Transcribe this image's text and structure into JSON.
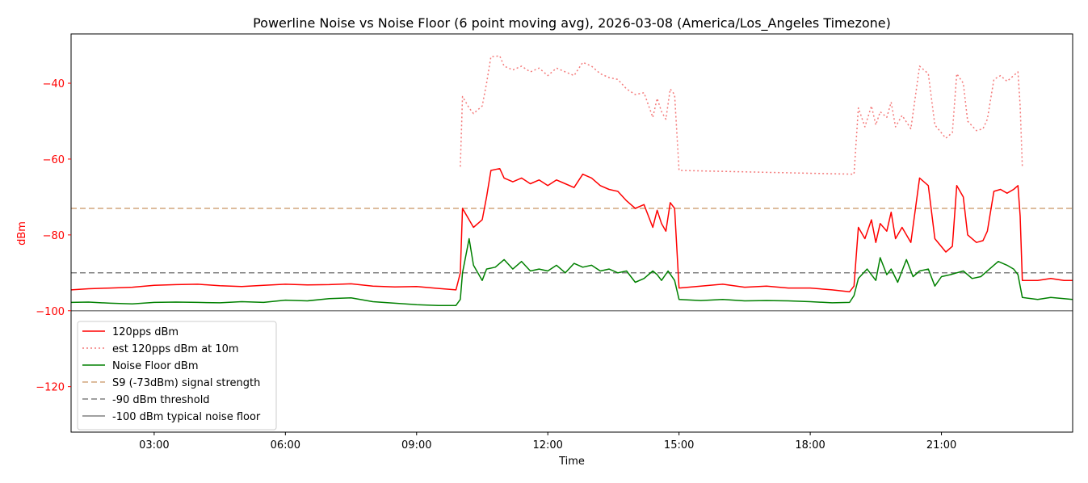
{
  "chart_data": {
    "type": "line",
    "title": "Powerline Noise vs Noise Floor (6 point moving avg), 2026-03-08 (America/Los_Angeles Timezone)",
    "xlabel": "Time",
    "ylabel": "dBm",
    "xlim": [
      1.1,
      24.0
    ],
    "ylim": [
      -132,
      -27
    ],
    "x_ticks": [
      {
        "value": 3,
        "label": "03:00"
      },
      {
        "value": 6,
        "label": "06:00"
      },
      {
        "value": 9,
        "label": "09:00"
      },
      {
        "value": 12,
        "label": "12:00"
      },
      {
        "value": 15,
        "label": "15:00"
      },
      {
        "value": 18,
        "label": "18:00"
      },
      {
        "value": 21,
        "label": "21:00"
      }
    ],
    "y_ticks": [
      {
        "value": -40,
        "label": "−40"
      },
      {
        "value": -60,
        "label": "−60"
      },
      {
        "value": -80,
        "label": "−80"
      },
      {
        "value": -100,
        "label": "−100"
      },
      {
        "value": -120,
        "label": "−120"
      }
    ],
    "grid": false,
    "legend_position": "lower-left",
    "series": [
      {
        "name": "120pps dBm",
        "color": "#ff0000",
        "style": "solid",
        "points": [
          [
            1.1,
            -94.5
          ],
          [
            1.5,
            -94.2
          ],
          [
            2.0,
            -94.0
          ],
          [
            2.5,
            -93.8
          ],
          [
            3.0,
            -93.3
          ],
          [
            3.5,
            -93.1
          ],
          [
            4.0,
            -93.0
          ],
          [
            4.5,
            -93.4
          ],
          [
            5.0,
            -93.6
          ],
          [
            5.5,
            -93.3
          ],
          [
            6.0,
            -93.0
          ],
          [
            6.5,
            -93.2
          ],
          [
            7.0,
            -93.1
          ],
          [
            7.5,
            -92.9
          ],
          [
            8.0,
            -93.5
          ],
          [
            8.5,
            -93.7
          ],
          [
            9.0,
            -93.6
          ],
          [
            9.5,
            -94.1
          ],
          [
            9.9,
            -94.5
          ],
          [
            10.0,
            -90.0
          ],
          [
            10.05,
            -73.0
          ],
          [
            10.2,
            -76.0
          ],
          [
            10.3,
            -78.0
          ],
          [
            10.5,
            -76.0
          ],
          [
            10.6,
            -70.0
          ],
          [
            10.7,
            -63.0
          ],
          [
            10.9,
            -62.5
          ],
          [
            11.0,
            -65.0
          ],
          [
            11.2,
            -66.0
          ],
          [
            11.4,
            -65.0
          ],
          [
            11.6,
            -66.5
          ],
          [
            11.8,
            -65.5
          ],
          [
            12.0,
            -67.0
          ],
          [
            12.2,
            -65.5
          ],
          [
            12.4,
            -66.5
          ],
          [
            12.6,
            -67.5
          ],
          [
            12.8,
            -64.0
          ],
          [
            13.0,
            -65.0
          ],
          [
            13.2,
            -67.0
          ],
          [
            13.4,
            -68.0
          ],
          [
            13.6,
            -68.5
          ],
          [
            13.8,
            -71.0
          ],
          [
            14.0,
            -73.0
          ],
          [
            14.2,
            -72.0
          ],
          [
            14.4,
            -78.0
          ],
          [
            14.5,
            -73.5
          ],
          [
            14.6,
            -77.0
          ],
          [
            14.7,
            -79.0
          ],
          [
            14.8,
            -71.5
          ],
          [
            14.9,
            -73.0
          ],
          [
            15.0,
            -94.0
          ],
          [
            15.5,
            -93.5
          ],
          [
            16.0,
            -93.0
          ],
          [
            16.5,
            -93.8
          ],
          [
            17.0,
            -93.5
          ],
          [
            17.5,
            -94.0
          ],
          [
            18.0,
            -94.0
          ],
          [
            18.5,
            -94.5
          ],
          [
            18.9,
            -95.0
          ],
          [
            19.0,
            -93.5
          ],
          [
            19.1,
            -78.0
          ],
          [
            19.25,
            -81.0
          ],
          [
            19.4,
            -76.0
          ],
          [
            19.5,
            -82.0
          ],
          [
            19.6,
            -77.0
          ],
          [
            19.75,
            -79.0
          ],
          [
            19.85,
            -74.0
          ],
          [
            19.95,
            -81.0
          ],
          [
            20.1,
            -78.0
          ],
          [
            20.3,
            -82.0
          ],
          [
            20.5,
            -65.0
          ],
          [
            20.7,
            -67.0
          ],
          [
            20.85,
            -81.0
          ],
          [
            21.1,
            -84.5
          ],
          [
            21.25,
            -83.0
          ],
          [
            21.35,
            -67.0
          ],
          [
            21.5,
            -70.0
          ],
          [
            21.6,
            -80.0
          ],
          [
            21.8,
            -82.0
          ],
          [
            21.95,
            -81.5
          ],
          [
            22.05,
            -79.0
          ],
          [
            22.2,
            -68.5
          ],
          [
            22.35,
            -68.0
          ],
          [
            22.5,
            -69.0
          ],
          [
            22.65,
            -68.0
          ],
          [
            22.75,
            -67.0
          ],
          [
            22.8,
            -75.0
          ],
          [
            22.85,
            -92.0
          ],
          [
            23.2,
            -92.0
          ],
          [
            23.5,
            -91.5
          ],
          [
            23.8,
            -92.0
          ],
          [
            24.0,
            -92.0
          ]
        ]
      },
      {
        "name": "est 120pps dBm at 10m",
        "color": "#f47a7a",
        "style": "dotted",
        "points": [
          [
            10.0,
            -62.0
          ],
          [
            10.05,
            -43.5
          ],
          [
            10.2,
            -46.5
          ],
          [
            10.3,
            -48.0
          ],
          [
            10.5,
            -46.0
          ],
          [
            10.6,
            -40.0
          ],
          [
            10.7,
            -33.0
          ],
          [
            10.9,
            -32.8
          ],
          [
            11.0,
            -35.5
          ],
          [
            11.2,
            -36.5
          ],
          [
            11.4,
            -35.5
          ],
          [
            11.6,
            -37.0
          ],
          [
            11.8,
            -36.0
          ],
          [
            12.0,
            -38.0
          ],
          [
            12.2,
            -36.0
          ],
          [
            12.4,
            -37.0
          ],
          [
            12.6,
            -38.0
          ],
          [
            12.8,
            -34.5
          ],
          [
            13.0,
            -35.5
          ],
          [
            13.2,
            -37.5
          ],
          [
            13.4,
            -38.5
          ],
          [
            13.6,
            -39.0
          ],
          [
            13.8,
            -41.5
          ],
          [
            14.0,
            -43.0
          ],
          [
            14.2,
            -42.5
          ],
          [
            14.4,
            -49.0
          ],
          [
            14.5,
            -44.0
          ],
          [
            14.6,
            -47.5
          ],
          [
            14.7,
            -49.5
          ],
          [
            14.8,
            -41.5
          ],
          [
            14.9,
            -43.0
          ],
          [
            15.0,
            -63.0
          ],
          [
            19.0,
            -64.0
          ],
          [
            19.1,
            -46.5
          ],
          [
            19.25,
            -51.5
          ],
          [
            19.4,
            -46.0
          ],
          [
            19.5,
            -51.0
          ],
          [
            19.6,
            -47.5
          ],
          [
            19.75,
            -49.0
          ],
          [
            19.85,
            -45.0
          ],
          [
            19.95,
            -51.5
          ],
          [
            20.1,
            -48.5
          ],
          [
            20.3,
            -52.0
          ],
          [
            20.5,
            -35.5
          ],
          [
            20.7,
            -37.5
          ],
          [
            20.85,
            -51.0
          ],
          [
            21.1,
            -54.5
          ],
          [
            21.25,
            -53.0
          ],
          [
            21.35,
            -37.5
          ],
          [
            21.5,
            -40.0
          ],
          [
            21.6,
            -50.0
          ],
          [
            21.8,
            -52.5
          ],
          [
            21.95,
            -52.0
          ],
          [
            22.05,
            -49.5
          ],
          [
            22.2,
            -39.0
          ],
          [
            22.35,
            -38.0
          ],
          [
            22.5,
            -39.5
          ],
          [
            22.65,
            -38.0
          ],
          [
            22.75,
            -37.0
          ],
          [
            22.8,
            -46.0
          ],
          [
            22.85,
            -62.0
          ]
        ]
      },
      {
        "name": "Noise Floor dBm",
        "color": "#008000",
        "style": "solid",
        "points": [
          [
            1.1,
            -97.8
          ],
          [
            1.5,
            -97.7
          ],
          [
            2.0,
            -98.0
          ],
          [
            2.5,
            -98.2
          ],
          [
            3.0,
            -97.8
          ],
          [
            3.5,
            -97.7
          ],
          [
            4.0,
            -97.8
          ],
          [
            4.5,
            -97.9
          ],
          [
            5.0,
            -97.6
          ],
          [
            5.5,
            -97.8
          ],
          [
            6.0,
            -97.2
          ],
          [
            6.5,
            -97.4
          ],
          [
            7.0,
            -96.8
          ],
          [
            7.5,
            -96.6
          ],
          [
            8.0,
            -97.6
          ],
          [
            8.5,
            -98.0
          ],
          [
            9.0,
            -98.4
          ],
          [
            9.5,
            -98.6
          ],
          [
            9.9,
            -98.6
          ],
          [
            10.0,
            -97.0
          ],
          [
            10.05,
            -90.0
          ],
          [
            10.2,
            -81.0
          ],
          [
            10.3,
            -88.0
          ],
          [
            10.5,
            -92.0
          ],
          [
            10.6,
            -89.0
          ],
          [
            10.8,
            -88.5
          ],
          [
            11.0,
            -86.5
          ],
          [
            11.2,
            -89.0
          ],
          [
            11.4,
            -87.0
          ],
          [
            11.6,
            -89.5
          ],
          [
            11.8,
            -89.0
          ],
          [
            12.0,
            -89.5
          ],
          [
            12.2,
            -88.0
          ],
          [
            12.4,
            -90.0
          ],
          [
            12.6,
            -87.5
          ],
          [
            12.8,
            -88.5
          ],
          [
            13.0,
            -88.0
          ],
          [
            13.2,
            -89.5
          ],
          [
            13.4,
            -89.0
          ],
          [
            13.6,
            -90.0
          ],
          [
            13.8,
            -89.5
          ],
          [
            14.0,
            -92.5
          ],
          [
            14.2,
            -91.5
          ],
          [
            14.4,
            -89.5
          ],
          [
            14.5,
            -90.5
          ],
          [
            14.6,
            -92.0
          ],
          [
            14.75,
            -89.5
          ],
          [
            14.9,
            -92.0
          ],
          [
            15.0,
            -97.0
          ],
          [
            15.5,
            -97.3
          ],
          [
            16.0,
            -97.0
          ],
          [
            16.5,
            -97.4
          ],
          [
            17.0,
            -97.3
          ],
          [
            17.5,
            -97.4
          ],
          [
            18.0,
            -97.6
          ],
          [
            18.5,
            -97.9
          ],
          [
            18.9,
            -97.8
          ],
          [
            19.0,
            -96.0
          ],
          [
            19.1,
            -91.5
          ],
          [
            19.3,
            -89.0
          ],
          [
            19.5,
            -92.0
          ],
          [
            19.6,
            -86.0
          ],
          [
            19.75,
            -90.5
          ],
          [
            19.85,
            -89.0
          ],
          [
            20.0,
            -92.5
          ],
          [
            20.2,
            -86.5
          ],
          [
            20.35,
            -91.0
          ],
          [
            20.5,
            -89.5
          ],
          [
            20.7,
            -89.0
          ],
          [
            20.85,
            -93.5
          ],
          [
            21.0,
            -91.0
          ],
          [
            21.2,
            -90.5
          ],
          [
            21.35,
            -90.0
          ],
          [
            21.5,
            -89.5
          ],
          [
            21.7,
            -91.5
          ],
          [
            21.9,
            -91.0
          ],
          [
            22.1,
            -89.0
          ],
          [
            22.3,
            -87.0
          ],
          [
            22.5,
            -88.0
          ],
          [
            22.65,
            -89.0
          ],
          [
            22.75,
            -90.5
          ],
          [
            22.85,
            -96.5
          ],
          [
            23.2,
            -97.0
          ],
          [
            23.5,
            -96.5
          ],
          [
            23.8,
            -96.8
          ],
          [
            24.0,
            -97.0
          ]
        ]
      },
      {
        "name": "S9 (-73dBm) signal strength",
        "color": "#d2a57d",
        "style": "dashed",
        "hline": -73
      },
      {
        "name": "-90 dBm threshold",
        "color": "#808080",
        "style": "dashed",
        "hline": -90
      },
      {
        "name": "-100 dBm typical noise floor",
        "color": "#808080",
        "style": "solid",
        "hline": -100
      }
    ]
  }
}
